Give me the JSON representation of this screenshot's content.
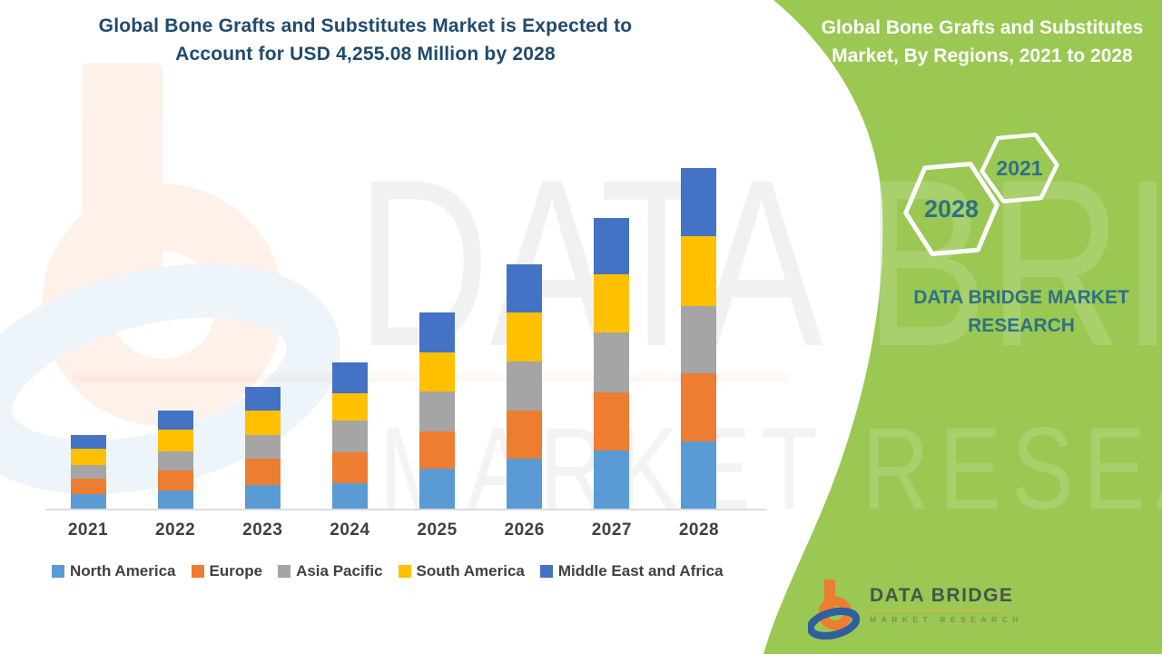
{
  "header": {
    "title_line1": "Global Bone Grafts and Substitutes Market is Expected to",
    "title_line2": "Account for USD 4,255.08 Million by 2028",
    "title_color": "#1F4A6E"
  },
  "side_panel": {
    "bg_color": "#9AC852",
    "title_line1": "Global Bone Grafts and Substitutes",
    "title_line2": "Market, By Regions, 2021 to 2028",
    "hexagons": [
      {
        "label": "2028"
      },
      {
        "label": "2021"
      }
    ],
    "hex_text_color": "#2E7286",
    "caption_line1": "DATA BRIDGE MARKET",
    "caption_line2": "RESEARCH"
  },
  "watermark": {
    "line1": "DATA BRIDGE",
    "line2": "MARKET RESEARCH"
  },
  "logo": {
    "name": "DATA BRIDGE",
    "subtitle": "MARKET  RESEARCH"
  },
  "chart_data": {
    "type": "bar",
    "stacked": true,
    "title": "Global Bone Grafts and Substitutes Market is Expected to Account for USD 4,255.08 Million by 2028",
    "unit": "USD Million",
    "values_estimated": true,
    "anchor_note": "2028 stacked total anchored to 4255.08",
    "categories": [
      "2021",
      "2022",
      "2023",
      "2024",
      "2025",
      "2026",
      "2027",
      "2028"
    ],
    "series": [
      {
        "name": "North America",
        "color": "#5B9BD5",
        "values": [
          181.6,
          226.9,
          295.0,
          317.7,
          499.3,
          624.1,
          726.2,
          839.7
        ]
      },
      {
        "name": "Europe",
        "color": "#ED7D31",
        "values": [
          192.9,
          249.6,
          329.1,
          385.8,
          465.2,
          601.4,
          726.2,
          851.0
        ]
      },
      {
        "name": "Asia Pacific",
        "color": "#A5A5A5",
        "values": [
          170.2,
          238.3,
          295.0,
          397.1,
          499.3,
          612.7,
          748.9,
          839.7
        ]
      },
      {
        "name": "South America",
        "color": "#FFC000",
        "values": [
          204.2,
          272.3,
          306.4,
          340.4,
          487.9,
          612.7,
          726.2,
          873.7
        ]
      },
      {
        "name": "Middle East and Africa",
        "color": "#4472C4",
        "values": [
          170.2,
          238.3,
          295.0,
          385.8,
          499.3,
          601.4,
          703.5,
          851.0
        ]
      }
    ],
    "axes": {
      "x_visible": true,
      "y_visible": false,
      "gridlines": false
    },
    "legend_position": "bottom"
  }
}
